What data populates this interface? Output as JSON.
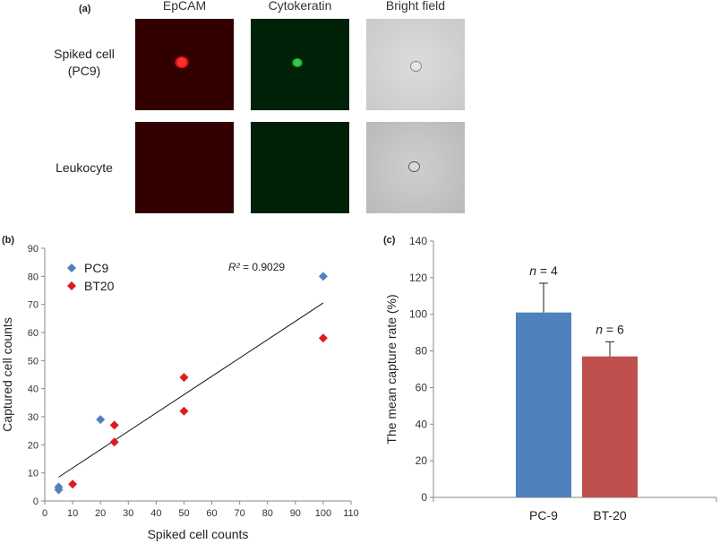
{
  "panel_a": {
    "label": "(a)",
    "columns": [
      "EpCAM",
      "Cytokeratin",
      "Bright field"
    ],
    "rows": [
      {
        "label_line1": "Spiked cell",
        "label_line2": "(PC9)"
      },
      {
        "label_line1": "Leukocyte",
        "label_line2": ""
      }
    ],
    "colors": {
      "epcam_bg": "#330000",
      "epcam_cell": "#ff1a1a",
      "ck_bg": "#002208",
      "ck_cell": "#22bb33",
      "bright_bg": "#d3d3d3"
    }
  },
  "chart_data": [
    {
      "panel_label": "(b)",
      "type": "scatter",
      "xlabel": "Spiked cell counts",
      "ylabel": "Captured cell counts",
      "xlim": [
        0,
        110
      ],
      "ylim": [
        0,
        90
      ],
      "xticks": [
        0,
        10,
        20,
        30,
        40,
        50,
        60,
        70,
        80,
        90,
        100,
        110
      ],
      "yticks": [
        0,
        10,
        20,
        30,
        40,
        50,
        60,
        70,
        80,
        90
      ],
      "annotation": "R² = 0.9029",
      "legend_position": "top-left",
      "series": [
        {
          "name": "PC9",
          "color": "#4f81bd",
          "points": [
            [
              5,
              4
            ],
            [
              5,
              5
            ],
            [
              20,
              29
            ],
            [
              100,
              80
            ]
          ]
        },
        {
          "name": "BT20",
          "color": "#e01b1b",
          "points": [
            [
              10,
              6
            ],
            [
              25,
              21
            ],
            [
              25,
              27
            ],
            [
              50,
              32
            ],
            [
              50,
              44
            ],
            [
              100,
              58
            ]
          ]
        }
      ],
      "trendline": {
        "x": [
          5,
          100
        ],
        "y": [
          8.5,
          70.5
        ]
      }
    },
    {
      "panel_label": "(c)",
      "type": "bar",
      "ylabel": "The mean capture rate (%)",
      "ylim": [
        0,
        140
      ],
      "yticks": [
        0,
        20,
        40,
        60,
        80,
        100,
        120,
        140
      ],
      "categories": [
        "PC-9",
        "BT-20"
      ],
      "values": [
        101,
        77
      ],
      "errors": [
        16,
        8
      ],
      "colors": [
        "#4f81bd",
        "#c0504d"
      ],
      "bar_labels": [
        {
          "n": "n",
          "rest": " = 4"
        },
        {
          "n": "n",
          "rest": " = 6"
        }
      ]
    }
  ]
}
